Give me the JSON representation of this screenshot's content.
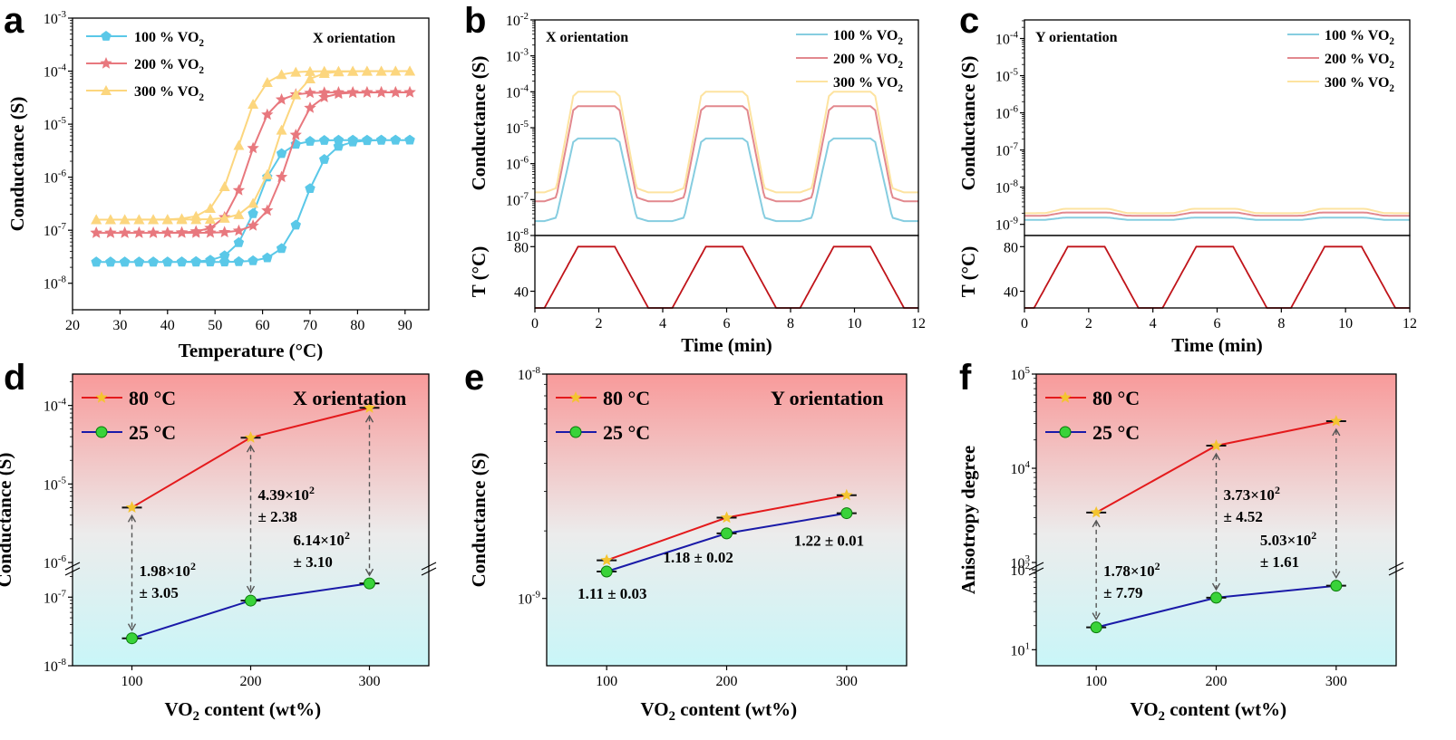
{
  "chart_data": [
    {
      "panel": "a",
      "type": "line",
      "xlabel": "Temperature (°C)",
      "ylabel": "Conductance (S)",
      "yscale": "log",
      "xlim": [
        20,
        95
      ],
      "ylim": [
        -8.5,
        -3
      ],
      "xticks": [
        "20",
        "30",
        "40",
        "50",
        "60",
        "70",
        "80",
        "90"
      ],
      "xtick_values": [
        20,
        30,
        40,
        50,
        60,
        70,
        80,
        90
      ],
      "yticks": [
        {
          "b": "10",
          "e": "-8",
          "v": -8
        },
        {
          "b": "10",
          "e": "-7",
          "v": -7
        },
        {
          "b": "10",
          "e": "-6",
          "v": -6
        },
        {
          "b": "10",
          "e": "-5",
          "v": -5
        },
        {
          "b": "10",
          "e": "-4",
          "v": -4
        },
        {
          "b": "10",
          "e": "-3",
          "v": -3
        }
      ],
      "annotation": "X orientation",
      "series": [
        {
          "name": "100 % VO",
          "sub": "2",
          "color": "#5ac8e8",
          "marker": "pentagon",
          "low": -7.6,
          "high": -5.3,
          "heat_mid": 69,
          "cool_mid": 59
        },
        {
          "name": "200 % VO",
          "sub": "2",
          "color": "#e8787e",
          "marker": "star",
          "low": -7.05,
          "high": -4.4,
          "heat_mid": 65,
          "cool_mid": 57
        },
        {
          "name": "300 % VO",
          "sub": "2",
          "color": "#fcd67e",
          "marker": "triangle",
          "low": -6.8,
          "high": -4.0,
          "heat_mid": 63,
          "cool_mid": 55
        }
      ]
    },
    {
      "panel": "b",
      "type": "line",
      "xlabel": "Time (min)",
      "ylabel": "Conductance (S)",
      "ylabel2": "T (°C)",
      "xlim": [
        0,
        12
      ],
      "xticks": [
        "0",
        "2",
        "4",
        "6",
        "8",
        "10",
        "12"
      ],
      "xtick_values": [
        0,
        2,
        4,
        6,
        8,
        10,
        12
      ],
      "ylim": [
        -8,
        -2
      ],
      "yticks": [
        {
          "b": "10",
          "e": "-8",
          "v": -8
        },
        {
          "b": "10",
          "e": "-7",
          "v": -7
        },
        {
          "b": "10",
          "e": "-6",
          "v": -6
        },
        {
          "b": "10",
          "e": "-5",
          "v": -5
        },
        {
          "b": "10",
          "e": "-4",
          "v": -4
        },
        {
          "b": "10",
          "e": "-3",
          "v": -3
        },
        {
          "b": "10",
          "e": "-2",
          "v": -2
        }
      ],
      "ylim2": [
        25,
        90
      ],
      "yticks2": [
        "40",
        "80"
      ],
      "ytick2_values": [
        40,
        80
      ],
      "annotation": "X orientation",
      "series": [
        {
          "name": "100 % VO",
          "sub": "2",
          "color": "#86cde0",
          "low": -7.6,
          "high": -5.3
        },
        {
          "name": "200 % VO",
          "sub": "2",
          "color": "#e2888e",
          "low": -7.05,
          "high": -4.4
        },
        {
          "name": "300 % VO",
          "sub": "2",
          "color": "#fde3a0",
          "low": -6.8,
          "high": -4.0
        }
      ],
      "temperature": {
        "color": "#c0141a",
        "low": 25,
        "high": 80,
        "period": 4,
        "ramp": 1.05,
        "hold": 1.15
      }
    },
    {
      "panel": "c",
      "type": "line",
      "xlabel": "Time (min)",
      "ylabel": "Conductance (S)",
      "ylabel2": "T (°C)",
      "xlim": [
        0,
        12
      ],
      "xticks": [
        "0",
        "2",
        "4",
        "6",
        "8",
        "10",
        "12"
      ],
      "xtick_values": [
        0,
        2,
        4,
        6,
        8,
        10,
        12
      ],
      "ylim": [
        -9.3,
        -3.5
      ],
      "yticks": [
        {
          "b": "10",
          "e": "-9",
          "v": -9
        },
        {
          "b": "10",
          "e": "-8",
          "v": -8
        },
        {
          "b": "10",
          "e": "-7",
          "v": -7
        },
        {
          "b": "10",
          "e": "-6",
          "v": -6
        },
        {
          "b": "10",
          "e": "-5",
          "v": -5
        },
        {
          "b": "10",
          "e": "-4",
          "v": -4
        }
      ],
      "ylim2": [
        25,
        90
      ],
      "yticks2": [
        "40",
        "80"
      ],
      "ytick2_values": [
        40,
        80
      ],
      "annotation": "Y orientation",
      "series": [
        {
          "name": "100 % VO",
          "sub": "2",
          "color": "#86cde0",
          "low": -8.88,
          "high": -8.82
        },
        {
          "name": "200 % VO",
          "sub": "2",
          "color": "#e2888e",
          "low": -8.77,
          "high": -8.68
        },
        {
          "name": "300 % VO",
          "sub": "2",
          "color": "#fde3a0",
          "low": -8.7,
          "high": -8.58
        }
      ],
      "temperature": {
        "color": "#c0141a",
        "low": 25,
        "high": 80,
        "period": 4,
        "ramp": 1.05,
        "hold": 1.15
      }
    },
    {
      "panel": "d",
      "type": "line",
      "xlabel": "VO",
      "xlabel_sub": "2",
      "xlabel_rest": " content (wt%)",
      "ylabel": "Conductance (S)",
      "x": [
        100,
        200,
        300
      ],
      "xlim": [
        50,
        350
      ],
      "xticks": [
        "100",
        "200",
        "300"
      ],
      "xtick_values": [
        100,
        200,
        300
      ],
      "broken_axis": true,
      "upper_ylim": [
        -6,
        -3.6
      ],
      "lower_ylim": [
        -8,
        -6.6
      ],
      "yticks_upper": [
        {
          "b": "10",
          "e": "-6",
          "v": -6
        },
        {
          "b": "10",
          "e": "-5",
          "v": -5
        },
        {
          "b": "10",
          "e": "-4",
          "v": -4
        }
      ],
      "yticks_lower": [
        {
          "b": "10",
          "e": "-8",
          "v": -8
        },
        {
          "b": "10",
          "e": "-7",
          "v": -7
        }
      ],
      "annotation": "X orientation",
      "series": [
        {
          "name": "80 °C",
          "color": "#e41a1c",
          "marker": "star",
          "values": [
            -5.3,
            -4.41,
            -4.03
          ]
        },
        {
          "name": "25 °C",
          "color": "#1a1aa8",
          "marker": "circle",
          "values": [
            -7.6,
            -7.05,
            -6.8
          ]
        }
      ],
      "ratios": [
        {
          "line1": "1.98×10",
          "sup": "2",
          "line2": "± 3.05"
        },
        {
          "line1": "4.39×10",
          "sup": "2",
          "line2": "± 2.38"
        },
        {
          "line1": "6.14×10",
          "sup": "2",
          "line2": "± 3.10"
        }
      ]
    },
    {
      "panel": "e",
      "type": "line",
      "xlabel": "VO",
      "xlabel_sub": "2",
      "xlabel_rest": " content (wt%)",
      "ylabel": "Conductance (S)",
      "x": [
        100,
        200,
        300
      ],
      "xlim": [
        50,
        350
      ],
      "xticks": [
        "100",
        "200",
        "300"
      ],
      "xtick_values": [
        100,
        200,
        300
      ],
      "ylim": [
        -9.3,
        -8
      ],
      "yticks": [
        {
          "b": "10",
          "e": "-9",
          "v": -9
        },
        {
          "b": "10",
          "e": "-8",
          "v": -8
        }
      ],
      "annotation": "Y orientation",
      "series": [
        {
          "name": "80 °C",
          "color": "#e41a1c",
          "marker": "star",
          "values": [
            -8.83,
            -8.64,
            -8.54
          ]
        },
        {
          "name": "25 °C",
          "color": "#1a1aa8",
          "marker": "circle",
          "values": [
            -8.88,
            -8.71,
            -8.62
          ]
        }
      ],
      "ratios": [
        {
          "line1": "1.11 ± 0.03"
        },
        {
          "line1": "1.18 ± 0.02"
        },
        {
          "line1": "1.22 ± 0.01"
        }
      ]
    },
    {
      "panel": "f",
      "type": "line",
      "xlabel": "VO",
      "xlabel_sub": "2",
      "xlabel_rest": " content (wt%)",
      "ylabel": "Anisotropy degree",
      "x": [
        100,
        200,
        300
      ],
      "xlim": [
        50,
        350
      ],
      "xticks": [
        "100",
        "200",
        "300"
      ],
      "xtick_values": [
        100,
        200,
        300
      ],
      "broken_axis": true,
      "upper_ylim": [
        3,
        5
      ],
      "lower_ylim": [
        0.8,
        2
      ],
      "yticks_upper": [
        {
          "b": "10",
          "e": "3",
          "v": 3
        },
        {
          "b": "10",
          "e": "4",
          "v": 4
        },
        {
          "b": "10",
          "e": "5",
          "v": 5
        }
      ],
      "yticks_lower": [
        {
          "b": "10",
          "e": "1",
          "v": 1
        },
        {
          "b": "10",
          "e": "2",
          "v": 2
        }
      ],
      "series": [
        {
          "name": "80 °C",
          "color": "#e41a1c",
          "marker": "star",
          "values": [
            3.53,
            4.24,
            4.5
          ]
        },
        {
          "name": "25 °C",
          "color": "#1a1aa8",
          "marker": "circle",
          "values": [
            1.28,
            1.65,
            1.8
          ]
        }
      ],
      "ratios": [
        {
          "line1": "1.78×10",
          "sup": "2",
          "line2": "± 7.79"
        },
        {
          "line1": "3.73×10",
          "sup": "2",
          "line2": "± 4.52"
        },
        {
          "line1": "5.03×10",
          "sup": "2",
          "line2": "± 1.61"
        }
      ]
    }
  ]
}
